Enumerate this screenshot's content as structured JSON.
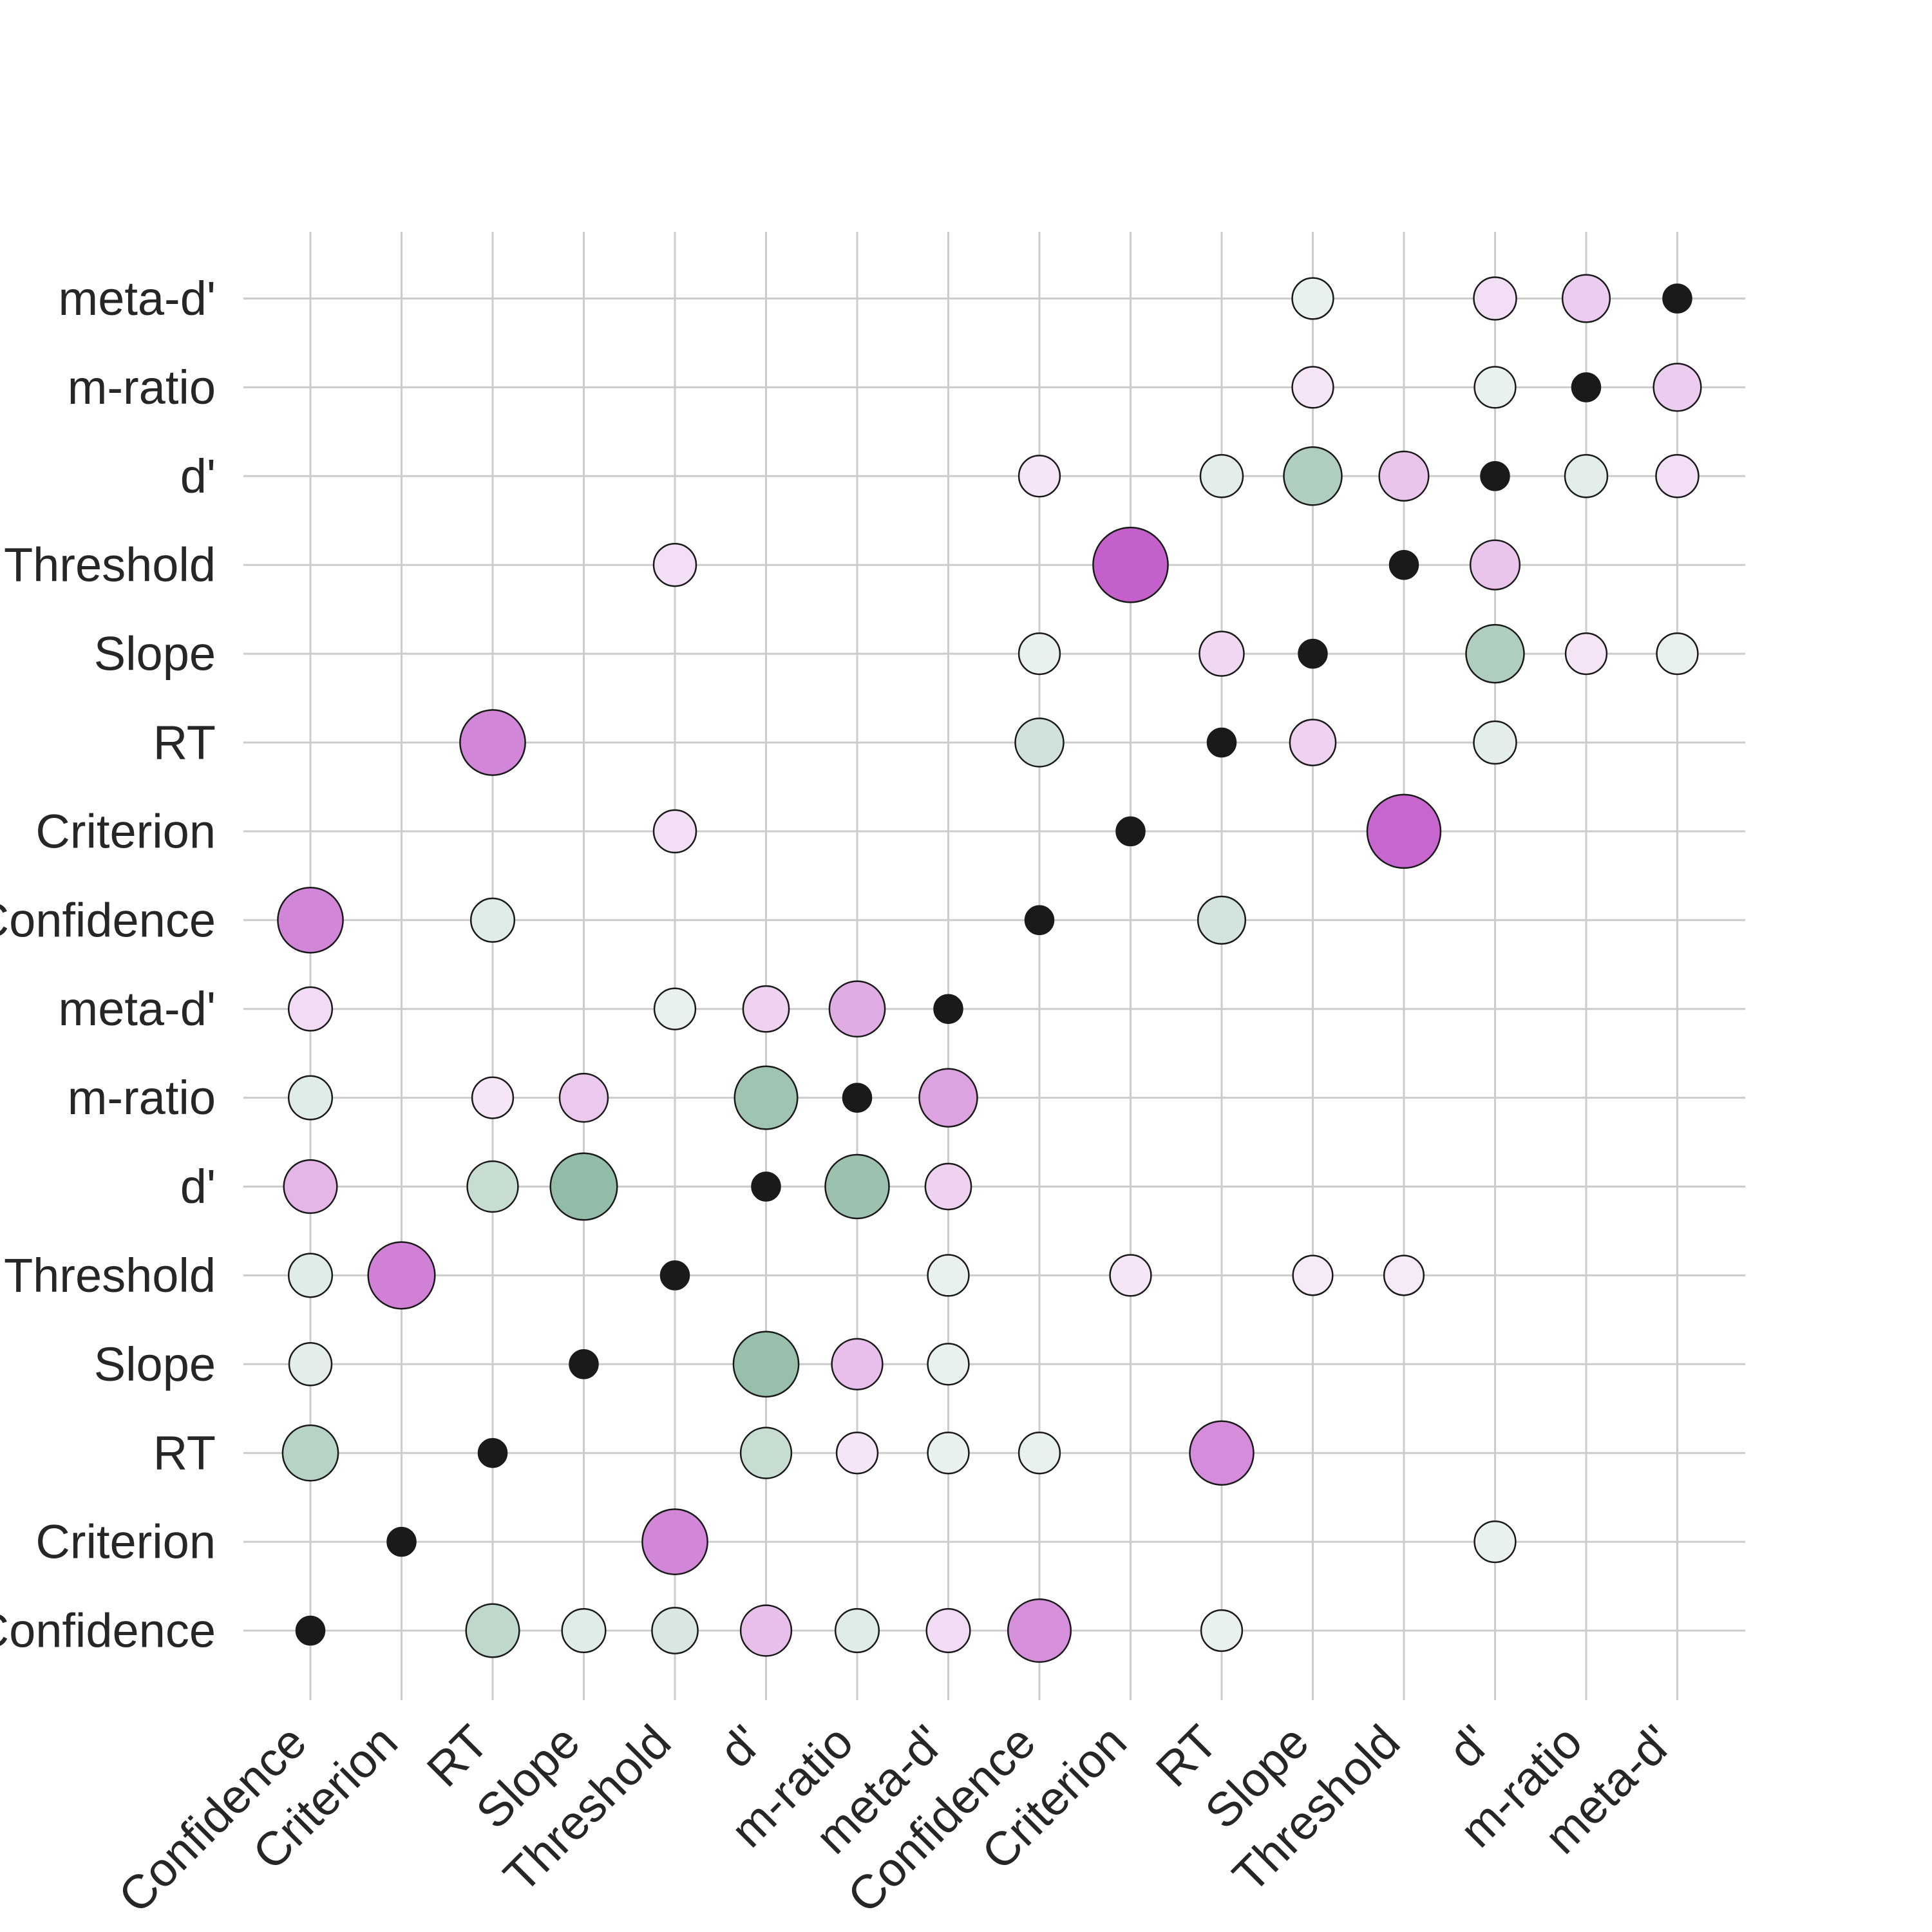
{
  "chart_data": {
    "type": "scatter",
    "title": "",
    "xlabel": "",
    "ylabel": "",
    "grid": true,
    "legend": false,
    "x_labels": [
      "Confidence",
      "Criterion",
      "RT",
      "Slope",
      "Threshold",
      "d'",
      "m-ratio",
      "meta-d'",
      "Confidence",
      "Criterion",
      "RT",
      "Slope",
      "Threshold",
      "d'",
      "m-ratio",
      "meta-d'"
    ],
    "y_labels": [
      "Confidence",
      "Criterion",
      "RT",
      "Slope",
      "Threshold",
      "d'",
      "m-ratio",
      "meta-d'",
      "Confidence",
      "Criterion",
      "RT",
      "Slope",
      "Threshold",
      "d'",
      "m-ratio",
      "meta-d'"
    ],
    "value_range": [
      -1,
      1
    ],
    "colors": {
      "negative": "#6ea68a",
      "positive": "#c157c9",
      "self": "#1a1a1a",
      "marker_edge": "#1a1a1a",
      "grid": "#cccccc"
    },
    "points": [
      {
        "x": 0,
        "y": 0,
        "value": 0,
        "self": true
      },
      {
        "x": 2,
        "y": 0,
        "value": -0.5
      },
      {
        "x": 3,
        "y": 0,
        "value": -0.3
      },
      {
        "x": 4,
        "y": 0,
        "value": -0.35
      },
      {
        "x": 5,
        "y": 0,
        "value": 0.45
      },
      {
        "x": 6,
        "y": 0,
        "value": -0.3
      },
      {
        "x": 7,
        "y": 0,
        "value": 0.3
      },
      {
        "x": 8,
        "y": 0,
        "value": 0.7
      },
      {
        "x": 10,
        "y": 0,
        "value": -0.25
      },
      {
        "x": 1,
        "y": 1,
        "value": 0,
        "self": true
      },
      {
        "x": 4,
        "y": 1,
        "value": 0.75
      },
      {
        "x": 13,
        "y": 1,
        "value": -0.25
      },
      {
        "x": 0,
        "y": 2,
        "value": -0.55
      },
      {
        "x": 2,
        "y": 2,
        "value": 0,
        "self": true
      },
      {
        "x": 5,
        "y": 2,
        "value": -0.45
      },
      {
        "x": 6,
        "y": 2,
        "value": 0.25
      },
      {
        "x": 7,
        "y": 2,
        "value": -0.25
      },
      {
        "x": 8,
        "y": 2,
        "value": -0.25
      },
      {
        "x": 10,
        "y": 2,
        "value": 0.72
      },
      {
        "x": 0,
        "y": 3,
        "value": -0.28
      },
      {
        "x": 3,
        "y": 3,
        "value": 0,
        "self": true
      },
      {
        "x": 5,
        "y": 3,
        "value": -0.75
      },
      {
        "x": 6,
        "y": 3,
        "value": 0.45
      },
      {
        "x": 7,
        "y": 3,
        "value": -0.25
      },
      {
        "x": 0,
        "y": 4,
        "value": -0.3
      },
      {
        "x": 1,
        "y": 4,
        "value": 0.78
      },
      {
        "x": 4,
        "y": 4,
        "value": 0,
        "self": true
      },
      {
        "x": 7,
        "y": 4,
        "value": -0.25
      },
      {
        "x": 9,
        "y": 4,
        "value": 0.25
      },
      {
        "x": 11,
        "y": 4,
        "value": 0.22
      },
      {
        "x": 12,
        "y": 4,
        "value": 0.22
      },
      {
        "x": 0,
        "y": 5,
        "value": 0.5
      },
      {
        "x": 2,
        "y": 5,
        "value": -0.45
      },
      {
        "x": 3,
        "y": 5,
        "value": -0.78
      },
      {
        "x": 5,
        "y": 5,
        "value": 0,
        "self": true
      },
      {
        "x": 6,
        "y": 5,
        "value": -0.72
      },
      {
        "x": 7,
        "y": 5,
        "value": 0.35
      },
      {
        "x": 0,
        "y": 6,
        "value": -0.3
      },
      {
        "x": 2,
        "y": 6,
        "value": 0.25
      },
      {
        "x": 3,
        "y": 6,
        "value": 0.4
      },
      {
        "x": 5,
        "y": 6,
        "value": -0.7
      },
      {
        "x": 6,
        "y": 6,
        "value": 0,
        "self": true
      },
      {
        "x": 7,
        "y": 6,
        "value": 0.6
      },
      {
        "x": 0,
        "y": 7,
        "value": 0.3
      },
      {
        "x": 4,
        "y": 7,
        "value": -0.25
      },
      {
        "x": 5,
        "y": 7,
        "value": 0.35
      },
      {
        "x": 6,
        "y": 7,
        "value": 0.55
      },
      {
        "x": 7,
        "y": 7,
        "value": 0,
        "self": true
      },
      {
        "x": 0,
        "y": 8,
        "value": 0.75
      },
      {
        "x": 2,
        "y": 8,
        "value": -0.3
      },
      {
        "x": 8,
        "y": 8,
        "value": 0,
        "self": true
      },
      {
        "x": 10,
        "y": 8,
        "value": -0.38
      },
      {
        "x": 4,
        "y": 9,
        "value": 0.28
      },
      {
        "x": 9,
        "y": 9,
        "value": 0,
        "self": true
      },
      {
        "x": 12,
        "y": 9,
        "value": 0.92
      },
      {
        "x": 2,
        "y": 10,
        "value": 0.75
      },
      {
        "x": 8,
        "y": 10,
        "value": -0.4
      },
      {
        "x": 10,
        "y": 10,
        "value": 0,
        "self": true
      },
      {
        "x": 11,
        "y": 10,
        "value": 0.35
      },
      {
        "x": 13,
        "y": 10,
        "value": -0.28
      },
      {
        "x": 8,
        "y": 11,
        "value": -0.25
      },
      {
        "x": 10,
        "y": 11,
        "value": 0.32
      },
      {
        "x": 11,
        "y": 11,
        "value": 0,
        "self": true
      },
      {
        "x": 13,
        "y": 11,
        "value": -0.6
      },
      {
        "x": 14,
        "y": 11,
        "value": 0.25
      },
      {
        "x": 15,
        "y": 11,
        "value": -0.25
      },
      {
        "x": 4,
        "y": 12,
        "value": 0.28
      },
      {
        "x": 9,
        "y": 12,
        "value": 0.95
      },
      {
        "x": 12,
        "y": 12,
        "value": 0,
        "self": true
      },
      {
        "x": 13,
        "y": 12,
        "value": 0.42
      },
      {
        "x": 8,
        "y": 13,
        "value": 0.25
      },
      {
        "x": 10,
        "y": 13,
        "value": -0.28
      },
      {
        "x": 11,
        "y": 13,
        "value": -0.6
      },
      {
        "x": 12,
        "y": 13,
        "value": 0.42
      },
      {
        "x": 13,
        "y": 13,
        "value": 0,
        "self": true
      },
      {
        "x": 14,
        "y": 13,
        "value": -0.28
      },
      {
        "x": 15,
        "y": 13,
        "value": 0.28
      },
      {
        "x": 11,
        "y": 14,
        "value": 0.25
      },
      {
        "x": 13,
        "y": 14,
        "value": -0.25
      },
      {
        "x": 14,
        "y": 14,
        "value": 0,
        "self": true
      },
      {
        "x": 15,
        "y": 14,
        "value": 0.38
      },
      {
        "x": 11,
        "y": 15,
        "value": -0.25
      },
      {
        "x": 13,
        "y": 15,
        "value": 0.28
      },
      {
        "x": 14,
        "y": 15,
        "value": 0.38
      },
      {
        "x": 15,
        "y": 15,
        "value": 0,
        "self": true
      }
    ]
  }
}
